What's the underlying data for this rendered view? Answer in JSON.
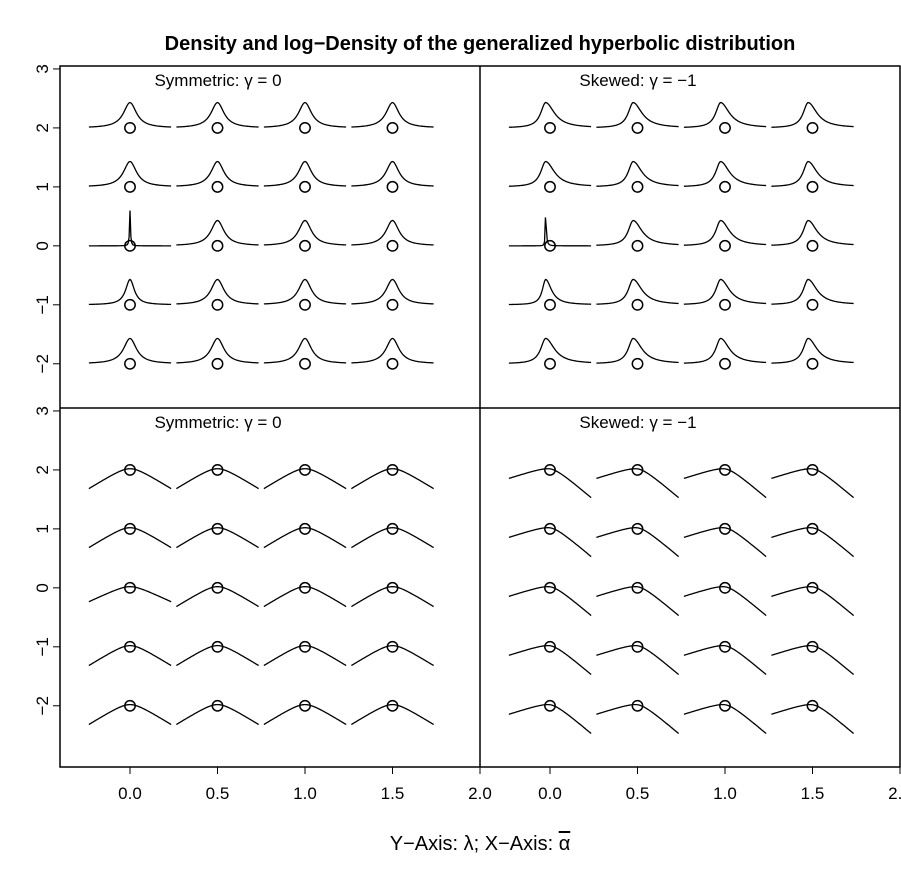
{
  "chart_data": {
    "type": "line",
    "title": "Density and log−Density of the generalized hyperbolic distribution",
    "xlabel": "Y−Axis: λ; X−Axis: α",
    "xlabel_bar_char": "α",
    "xlim": [
      -0.4,
      2.0
    ],
    "ylim": [
      -2.75,
      3.05
    ],
    "x_ticks": [
      0.0,
      0.5,
      1.0,
      1.5,
      2.0
    ],
    "x_tick_labels": [
      "0.0",
      "0.5",
      "1.0",
      "1.5",
      "2.0"
    ],
    "y_ticks": [
      -2,
      -1,
      0,
      1,
      2,
      3
    ],
    "y_tick_labels": [
      "−2",
      "−1",
      "0",
      "1",
      "2",
      "3"
    ],
    "alpha_bar": [
      0.0,
      0.5,
      1.0,
      1.5
    ],
    "lambda": [
      -2,
      -1,
      0,
      1,
      2
    ],
    "panels": [
      {
        "label": "Symmetric: γ = 0",
        "kind": "density",
        "gamma": 0
      },
      {
        "label": "Skewed: γ = −1",
        "kind": "density",
        "gamma": -1
      },
      {
        "label": "Symmetric: γ = 0",
        "kind": "log-density",
        "gamma": 0
      },
      {
        "label": "Skewed: γ = −1",
        "kind": "log-density",
        "gamma": -1
      }
    ]
  }
}
